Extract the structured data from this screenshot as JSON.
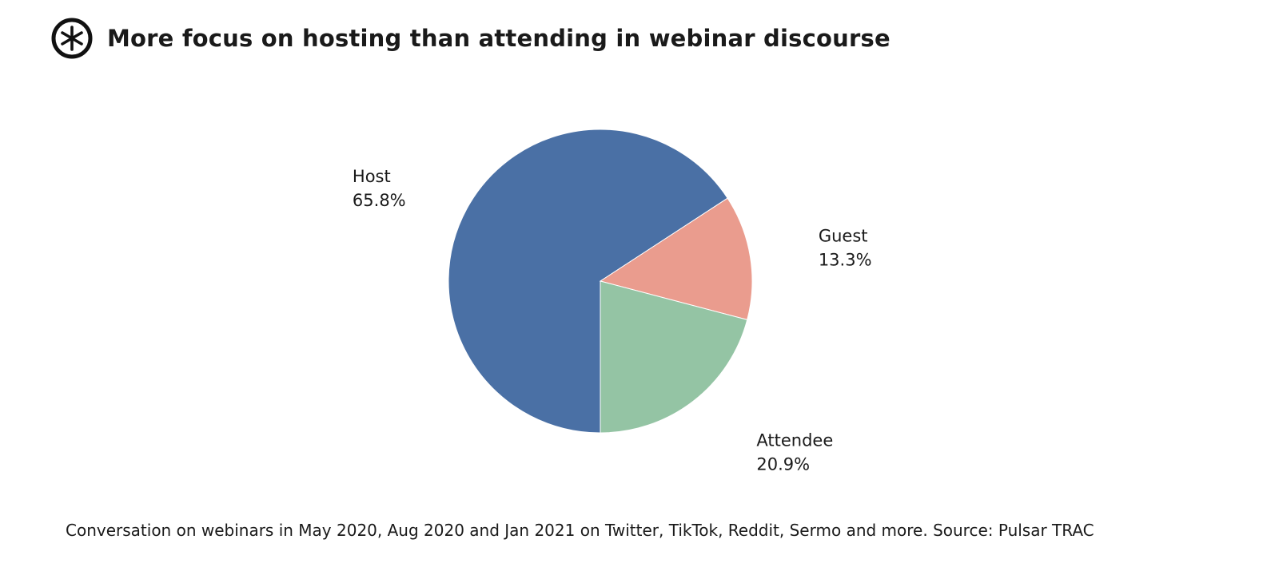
{
  "header": {
    "title": "More focus on hosting than attending in webinar discourse",
    "logo_icon": "asterisk-circle-logo"
  },
  "colors": {
    "host": "#4a70a5",
    "guest": "#ea9c8e",
    "attendee": "#94c4a4",
    "text": "#1a1a1a"
  },
  "chart_data": {
    "type": "pie",
    "title": "More focus on hosting than attending in webinar discourse",
    "categories": [
      "Host",
      "Guest",
      "Attendee"
    ],
    "values": [
      65.8,
      13.3,
      20.9
    ],
    "value_labels": [
      "65.8%",
      "13.3%",
      "20.9%"
    ],
    "unit": "%",
    "start": "bottom, clockwise",
    "legend": "none (direct labels)"
  },
  "footnote": "Conversation on webinars in May 2020, Aug 2020 and Jan 2021 on Twitter, TikTok, Reddit, Sermo and more. Source: Pulsar TRAC"
}
